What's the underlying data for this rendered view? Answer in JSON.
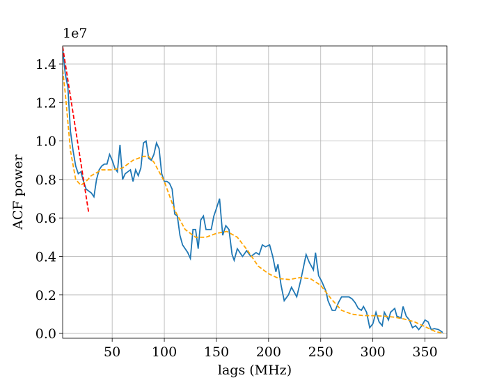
{
  "chart_data": {
    "type": "line",
    "y_offset_text": "1e7",
    "xlabel": "lags (MHz)",
    "ylabel": "ACF power",
    "xlim": [
      2.5,
      371
    ],
    "ylim": [
      -0.025,
      1.494
    ],
    "xticks": [
      50,
      100,
      150,
      200,
      250,
      300,
      350
    ],
    "yticks": [
      {
        "value": 0,
        "label": "0.0"
      },
      0.2,
      0.4,
      0.6,
      0.8,
      {
        "value": 1,
        "label": "1.0"
      },
      1.2,
      1.4
    ],
    "grid": true,
    "series": [
      {
        "color": "#1f77b4",
        "linestyle": "solid",
        "x": [
          2.5,
          5,
          7.5,
          10,
          12.5,
          15,
          17.5,
          20,
          22.5,
          25,
          27.5,
          30,
          32.5,
          35,
          37.5,
          40,
          42.5,
          45,
          47.5,
          50,
          52.5,
          55,
          57.5,
          60,
          62.5,
          65,
          67.5,
          70,
          72.5,
          75,
          77.5,
          80,
          82.5,
          85,
          87.5,
          90,
          92.5,
          95,
          97.5,
          100,
          102.5,
          105,
          107.5,
          110,
          112.5,
          115,
          117.5,
          120,
          122.5,
          125,
          127.5,
          130,
          132.5,
          135,
          137.5,
          140,
          142.5,
          145,
          147.5,
          150,
          153,
          156,
          159,
          162,
          165,
          167,
          170,
          175,
          179,
          183,
          188,
          191,
          194,
          197,
          201,
          204,
          207,
          209,
          212,
          215,
          219,
          222,
          227,
          231,
          236,
          239,
          243,
          245,
          248,
          251,
          255,
          257,
          261,
          264,
          267,
          270,
          273,
          277,
          280,
          283,
          286,
          289,
          291,
          294,
          297,
          300,
          303,
          306,
          309,
          311,
          315,
          317,
          321,
          323,
          327,
          329,
          332,
          335,
          338,
          341,
          344,
          347,
          350,
          353,
          356,
          359,
          363,
          367
        ],
        "values": [
          1.48,
          1.35,
          1.28,
          1.05,
          0.95,
          0.87,
          0.83,
          0.84,
          0.79,
          0.75,
          0.74,
          0.73,
          0.71,
          0.8,
          0.85,
          0.87,
          0.88,
          0.88,
          0.93,
          0.9,
          0.86,
          0.84,
          0.98,
          0.8,
          0.83,
          0.84,
          0.85,
          0.79,
          0.85,
          0.82,
          0.86,
          0.99,
          1.0,
          0.91,
          0.9,
          0.93,
          0.99,
          0.96,
          0.83,
          0.79,
          0.79,
          0.78,
          0.75,
          0.62,
          0.61,
          0.51,
          0.46,
          0.44,
          0.42,
          0.39,
          0.54,
          0.54,
          0.44,
          0.59,
          0.61,
          0.54,
          0.54,
          0.54,
          0.61,
          0.65,
          0.7,
          0.51,
          0.56,
          0.54,
          0.41,
          0.38,
          0.44,
          0.4,
          0.43,
          0.4,
          0.42,
          0.41,
          0.46,
          0.45,
          0.46,
          0.4,
          0.32,
          0.36,
          0.25,
          0.17,
          0.2,
          0.24,
          0.19,
          0.28,
          0.41,
          0.37,
          0.33,
          0.42,
          0.3,
          0.27,
          0.22,
          0.17,
          0.12,
          0.12,
          0.16,
          0.19,
          0.19,
          0.19,
          0.18,
          0.16,
          0.13,
          0.12,
          0.14,
          0.11,
          0.03,
          0.05,
          0.11,
          0.06,
          0.04,
          0.11,
          0.07,
          0.11,
          0.13,
          0.09,
          0.08,
          0.14,
          0.09,
          0.07,
          0.03,
          0.04,
          0.02,
          0.04,
          0.07,
          0.06,
          0.02,
          0.025,
          0.02,
          0.005
        ]
      },
      {
        "color": "#ffa500",
        "linestyle": "dashed",
        "x": [
          2.5,
          5,
          10,
          15,
          20,
          25,
          30,
          40,
          50,
          60,
          70,
          80,
          85,
          90,
          100,
          110,
          120,
          130,
          140,
          150,
          160,
          170,
          180,
          190,
          200,
          210,
          220,
          230,
          240,
          250,
          260,
          270,
          280,
          290,
          300,
          310,
          320,
          330,
          340,
          350,
          360,
          368
        ],
        "values": [
          1.37,
          1.25,
          0.95,
          0.8,
          0.77,
          0.79,
          0.82,
          0.85,
          0.85,
          0.86,
          0.9,
          0.92,
          0.92,
          0.89,
          0.79,
          0.64,
          0.54,
          0.5,
          0.5,
          0.52,
          0.53,
          0.5,
          0.43,
          0.35,
          0.31,
          0.285,
          0.28,
          0.29,
          0.285,
          0.25,
          0.18,
          0.12,
          0.1,
          0.093,
          0.092,
          0.09,
          0.085,
          0.075,
          0.06,
          0.035,
          0.01,
          0.0
        ]
      },
      {
        "color": "#ff0000",
        "linestyle": "dashed",
        "x": [
          2.5,
          27.3
        ],
        "values": [
          1.49,
          0.633
        ]
      }
    ]
  }
}
